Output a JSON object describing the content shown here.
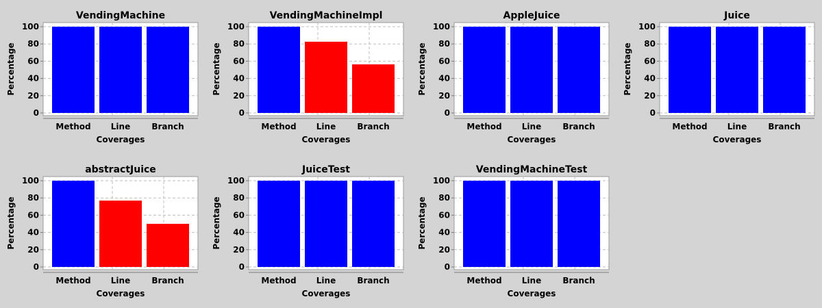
{
  "theme": {
    "background": "#d4d4d4",
    "plot_background": "#ffffff",
    "grid_color": "#bdbdbd",
    "bar_full_color": "#0000ff",
    "bar_partial_color": "#ff0000",
    "tick_color": "#7a7a7a"
  },
  "chart_data": [
    {
      "type": "bar",
      "title": "VendingMachine",
      "categories": [
        "Method",
        "Line",
        "Branch"
      ],
      "values": [
        100,
        100,
        100
      ],
      "xlabel": "Coverages",
      "ylabel": "Percentage",
      "ylim": [
        0,
        100
      ],
      "yticks": [
        0,
        20,
        40,
        60,
        80,
        100
      ],
      "grid": true
    },
    {
      "type": "bar",
      "title": "VendingMachineImpl",
      "categories": [
        "Method",
        "Line",
        "Branch"
      ],
      "values": [
        100,
        82.6,
        56.3
      ],
      "xlabel": "Coverages",
      "ylabel": "Percentage",
      "ylim": [
        0,
        100
      ],
      "yticks": [
        0,
        20,
        40,
        60,
        80,
        100
      ],
      "grid": true
    },
    {
      "type": "bar",
      "title": "AppleJuice",
      "categories": [
        "Method",
        "Line",
        "Branch"
      ],
      "values": [
        100,
        100,
        100
      ],
      "xlabel": "Coverages",
      "ylabel": "Percentage",
      "ylim": [
        0,
        100
      ],
      "yticks": [
        0,
        20,
        40,
        60,
        80,
        100
      ],
      "grid": true
    },
    {
      "type": "bar",
      "title": "Juice",
      "categories": [
        "Method",
        "Line",
        "Branch"
      ],
      "values": [
        100,
        100,
        100
      ],
      "xlabel": "Coverages",
      "ylabel": "Percentage",
      "ylim": [
        0,
        100
      ],
      "yticks": [
        0,
        20,
        40,
        60,
        80,
        100
      ],
      "grid": true
    },
    {
      "type": "bar",
      "title": "abstractJuice",
      "categories": [
        "Method",
        "Line",
        "Branch"
      ],
      "values": [
        100,
        76.9,
        50
      ],
      "xlabel": "Coverages",
      "ylabel": "Percentage",
      "ylim": [
        0,
        100
      ],
      "yticks": [
        0,
        20,
        40,
        60,
        80,
        100
      ],
      "grid": true
    },
    {
      "type": "bar",
      "title": "JuiceTest",
      "categories": [
        "Method",
        "Line",
        "Branch"
      ],
      "values": [
        100,
        100,
        100
      ],
      "xlabel": "Coverages",
      "ylabel": "Percentage",
      "ylim": [
        0,
        100
      ],
      "yticks": [
        0,
        20,
        40,
        60,
        80,
        100
      ],
      "grid": true
    },
    {
      "type": "bar",
      "title": "VendingMachineTest",
      "categories": [
        "Method",
        "Line",
        "Branch"
      ],
      "values": [
        100,
        100,
        100
      ],
      "xlabel": "Coverages",
      "ylabel": "Percentage",
      "ylim": [
        0,
        100
      ],
      "yticks": [
        0,
        20,
        40,
        60,
        80,
        100
      ],
      "grid": true
    }
  ]
}
